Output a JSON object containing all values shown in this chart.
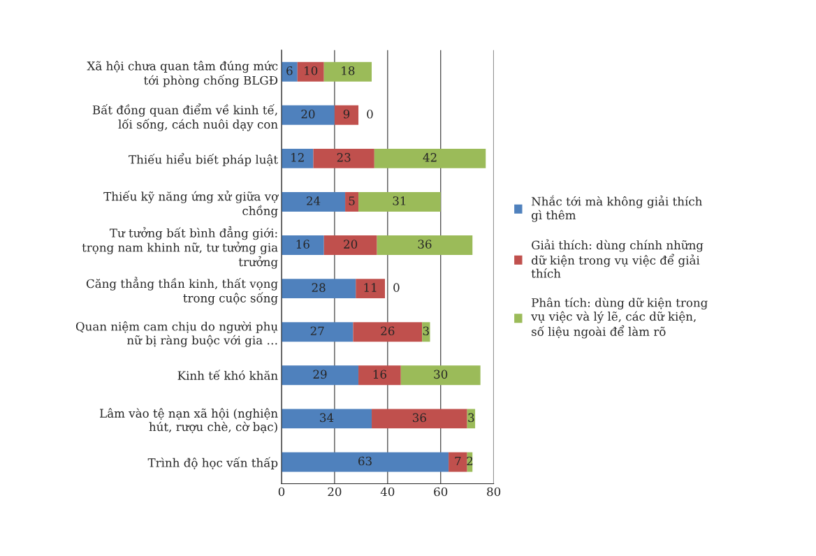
{
  "chart_data": {
    "type": "bar",
    "orientation": "horizontal",
    "stacked": true,
    "data_labels": true,
    "grid": "x",
    "legend": "right",
    "categories": [
      "Xã hội chưa quan tâm đúng mức tới phòng chống BLGĐ",
      "Bất đồng quan điểm về kinh tế, lối sống, cách nuôi dạy con",
      "Thiếu hiểu biết pháp luật",
      "Thiếu kỹ năng ứng xử giữa vợ chồng",
      "Tư tưởng bất bình đẳng giới: trọng nam khinh nữ, tư tưởng gia trưởng",
      "Căng thẳng thần kinh, thất vọng trong cuộc sống",
      "Quan niệm cam chịu do người phụ nữ bị ràng buộc với gia …",
      "Kinh tế khó khăn",
      "Lâm vào tệ nạn xã hội (nghiện hút, rượu chè, cờ bạc)",
      "Trình độ học vấn thấp"
    ],
    "series": [
      {
        "name": "Nhắc tới mà không giải thích gì thêm",
        "color": "#4f81bd",
        "values": [
          6,
          20,
          12,
          24,
          16,
          28,
          27,
          29,
          34,
          63
        ]
      },
      {
        "name": "Giải thích: dùng chính những dữ kiện trong vụ việc để giải thích",
        "color": "#c0504d",
        "values": [
          10,
          9,
          23,
          5,
          20,
          11,
          26,
          16,
          36,
          7
        ]
      },
      {
        "name": "Phân tích: dùng dữ kiện trong vụ việc và lý lẽ, các dữ kiện, số liệu ngoài để làm rõ",
        "color": "#9bbb59",
        "values": [
          18,
          0,
          42,
          31,
          36,
          0,
          3,
          30,
          3,
          2
        ]
      }
    ],
    "xlim": [
      0,
      80
    ],
    "xticks": [
      0,
      20,
      40,
      60,
      80
    ]
  }
}
